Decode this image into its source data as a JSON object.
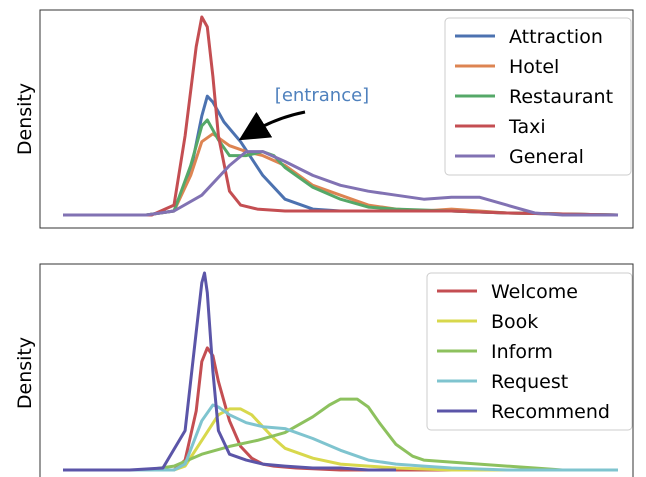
{
  "chart_data": [
    {
      "type": "line",
      "title": "",
      "xlabel": "",
      "ylabel": "Density",
      "xlim": [
        0,
        1
      ],
      "ylim": [
        0,
        1
      ],
      "grid": false,
      "legend_position": "top-right",
      "annotation": {
        "text": "[entrance]",
        "color": "#4f81bd",
        "points_to_series": "Attraction"
      },
      "series": [
        {
          "name": "Attraction",
          "color": "#4c72b0",
          "x": [
            0,
            0.15,
            0.2,
            0.23,
            0.25,
            0.26,
            0.27,
            0.29,
            0.32,
            0.36,
            0.4,
            0.45,
            0.5,
            0.6,
            0.7,
            0.8,
            1.0
          ],
          "y": [
            0,
            0,
            0.02,
            0.22,
            0.5,
            0.6,
            0.57,
            0.47,
            0.37,
            0.2,
            0.08,
            0.03,
            0.02,
            0.02,
            0.02,
            0.01,
            0
          ]
        },
        {
          "name": "Hotel",
          "color": "#dd8452",
          "x": [
            0,
            0.15,
            0.2,
            0.23,
            0.25,
            0.27,
            0.3,
            0.33,
            0.36,
            0.4,
            0.45,
            0.5,
            0.55,
            0.6,
            0.65,
            0.7,
            0.75,
            0.8,
            1.0
          ],
          "y": [
            0,
            0,
            0.02,
            0.2,
            0.37,
            0.41,
            0.35,
            0.32,
            0.3,
            0.25,
            0.15,
            0.1,
            0.05,
            0.03,
            0.02,
            0.03,
            0.02,
            0.01,
            0
          ]
        },
        {
          "name": "Restaurant",
          "color": "#55a868",
          "x": [
            0,
            0.15,
            0.2,
            0.23,
            0.25,
            0.26,
            0.28,
            0.3,
            0.33,
            0.36,
            0.38,
            0.4,
            0.45,
            0.5,
            0.55,
            0.6,
            0.7,
            0.8,
            1.0
          ],
          "y": [
            0,
            0,
            0.02,
            0.25,
            0.45,
            0.48,
            0.38,
            0.3,
            0.3,
            0.32,
            0.3,
            0.24,
            0.14,
            0.08,
            0.04,
            0.03,
            0.02,
            0.01,
            0
          ]
        },
        {
          "name": "Taxi",
          "color": "#c44e52",
          "x": [
            0,
            0.16,
            0.2,
            0.22,
            0.24,
            0.25,
            0.26,
            0.27,
            0.28,
            0.3,
            0.32,
            0.35,
            0.4,
            0.5,
            0.6,
            0.7,
            0.8,
            1.0
          ],
          "y": [
            0,
            0,
            0.05,
            0.4,
            0.85,
            1.0,
            0.95,
            0.7,
            0.4,
            0.12,
            0.05,
            0.03,
            0.02,
            0.02,
            0.02,
            0.02,
            0.01,
            0
          ]
        },
        {
          "name": "General",
          "color": "#8172b3",
          "x": [
            0,
            0.15,
            0.2,
            0.25,
            0.3,
            0.33,
            0.36,
            0.4,
            0.45,
            0.5,
            0.55,
            0.6,
            0.65,
            0.7,
            0.75,
            0.8,
            0.85,
            0.9,
            1.0
          ],
          "y": [
            0,
            0,
            0.02,
            0.1,
            0.25,
            0.32,
            0.32,
            0.27,
            0.2,
            0.15,
            0.12,
            0.1,
            0.08,
            0.09,
            0.09,
            0.05,
            0.01,
            0,
            0
          ]
        }
      ]
    },
    {
      "type": "line",
      "title": "",
      "xlabel": "",
      "ylabel": "Density",
      "xlim": [
        0,
        1
      ],
      "ylim": [
        0,
        1
      ],
      "grid": false,
      "legend_position": "top-right",
      "series": [
        {
          "name": "Welcome",
          "color": "#c44e52",
          "x": [
            0,
            0.2,
            0.22,
            0.24,
            0.25,
            0.26,
            0.27,
            0.28,
            0.3,
            0.32,
            0.34,
            0.36,
            0.38,
            0.42,
            0.5,
            0.6,
            1.0
          ],
          "y": [
            0,
            0,
            0.05,
            0.3,
            0.55,
            0.62,
            0.58,
            0.45,
            0.25,
            0.12,
            0.06,
            0.03,
            0.02,
            0.01,
            0,
            0,
            0
          ]
        },
        {
          "name": "Book",
          "color": "#d8d84c",
          "x": [
            0,
            0.2,
            0.22,
            0.25,
            0.28,
            0.3,
            0.32,
            0.34,
            0.36,
            0.38,
            0.4,
            0.45,
            0.5,
            0.55,
            0.6,
            0.7,
            1.0
          ],
          "y": [
            0,
            0,
            0.02,
            0.15,
            0.28,
            0.31,
            0.31,
            0.28,
            0.22,
            0.16,
            0.11,
            0.06,
            0.03,
            0.02,
            0.01,
            0,
            0
          ]
        },
        {
          "name": "Inform",
          "color": "#8dc15e",
          "x": [
            0,
            0.15,
            0.2,
            0.25,
            0.3,
            0.35,
            0.4,
            0.45,
            0.48,
            0.5,
            0.53,
            0.55,
            0.57,
            0.6,
            0.63,
            0.65,
            0.7,
            0.75,
            0.8,
            0.85,
            0.9,
            1.0
          ],
          "y": [
            0,
            0,
            0.02,
            0.08,
            0.12,
            0.15,
            0.19,
            0.27,
            0.33,
            0.36,
            0.36,
            0.32,
            0.24,
            0.13,
            0.07,
            0.05,
            0.04,
            0.03,
            0.02,
            0.01,
            0,
            0
          ]
        },
        {
          "name": "Request",
          "color": "#7fc4cf",
          "x": [
            0,
            0.2,
            0.22,
            0.25,
            0.27,
            0.28,
            0.3,
            0.33,
            0.36,
            0.4,
            0.45,
            0.5,
            0.55,
            0.6,
            0.65,
            0.7,
            0.8,
            1.0
          ],
          "y": [
            0,
            0,
            0.03,
            0.25,
            0.33,
            0.32,
            0.28,
            0.24,
            0.22,
            0.21,
            0.16,
            0.1,
            0.05,
            0.03,
            0.02,
            0.01,
            0,
            0
          ]
        },
        {
          "name": "Recommend",
          "color": "#5b55a8",
          "x": [
            0,
            0.12,
            0.18,
            0.22,
            0.24,
            0.25,
            0.255,
            0.26,
            0.27,
            0.28,
            0.3,
            0.33,
            0.36,
            0.4,
            0.45,
            0.5,
            0.55,
            0.6
          ],
          "y": [
            0,
            0,
            0.01,
            0.2,
            0.7,
            0.95,
            1.0,
            0.9,
            0.5,
            0.2,
            0.08,
            0.05,
            0.03,
            0.02,
            0.01,
            0.01,
            0,
            0
          ]
        }
      ]
    }
  ]
}
